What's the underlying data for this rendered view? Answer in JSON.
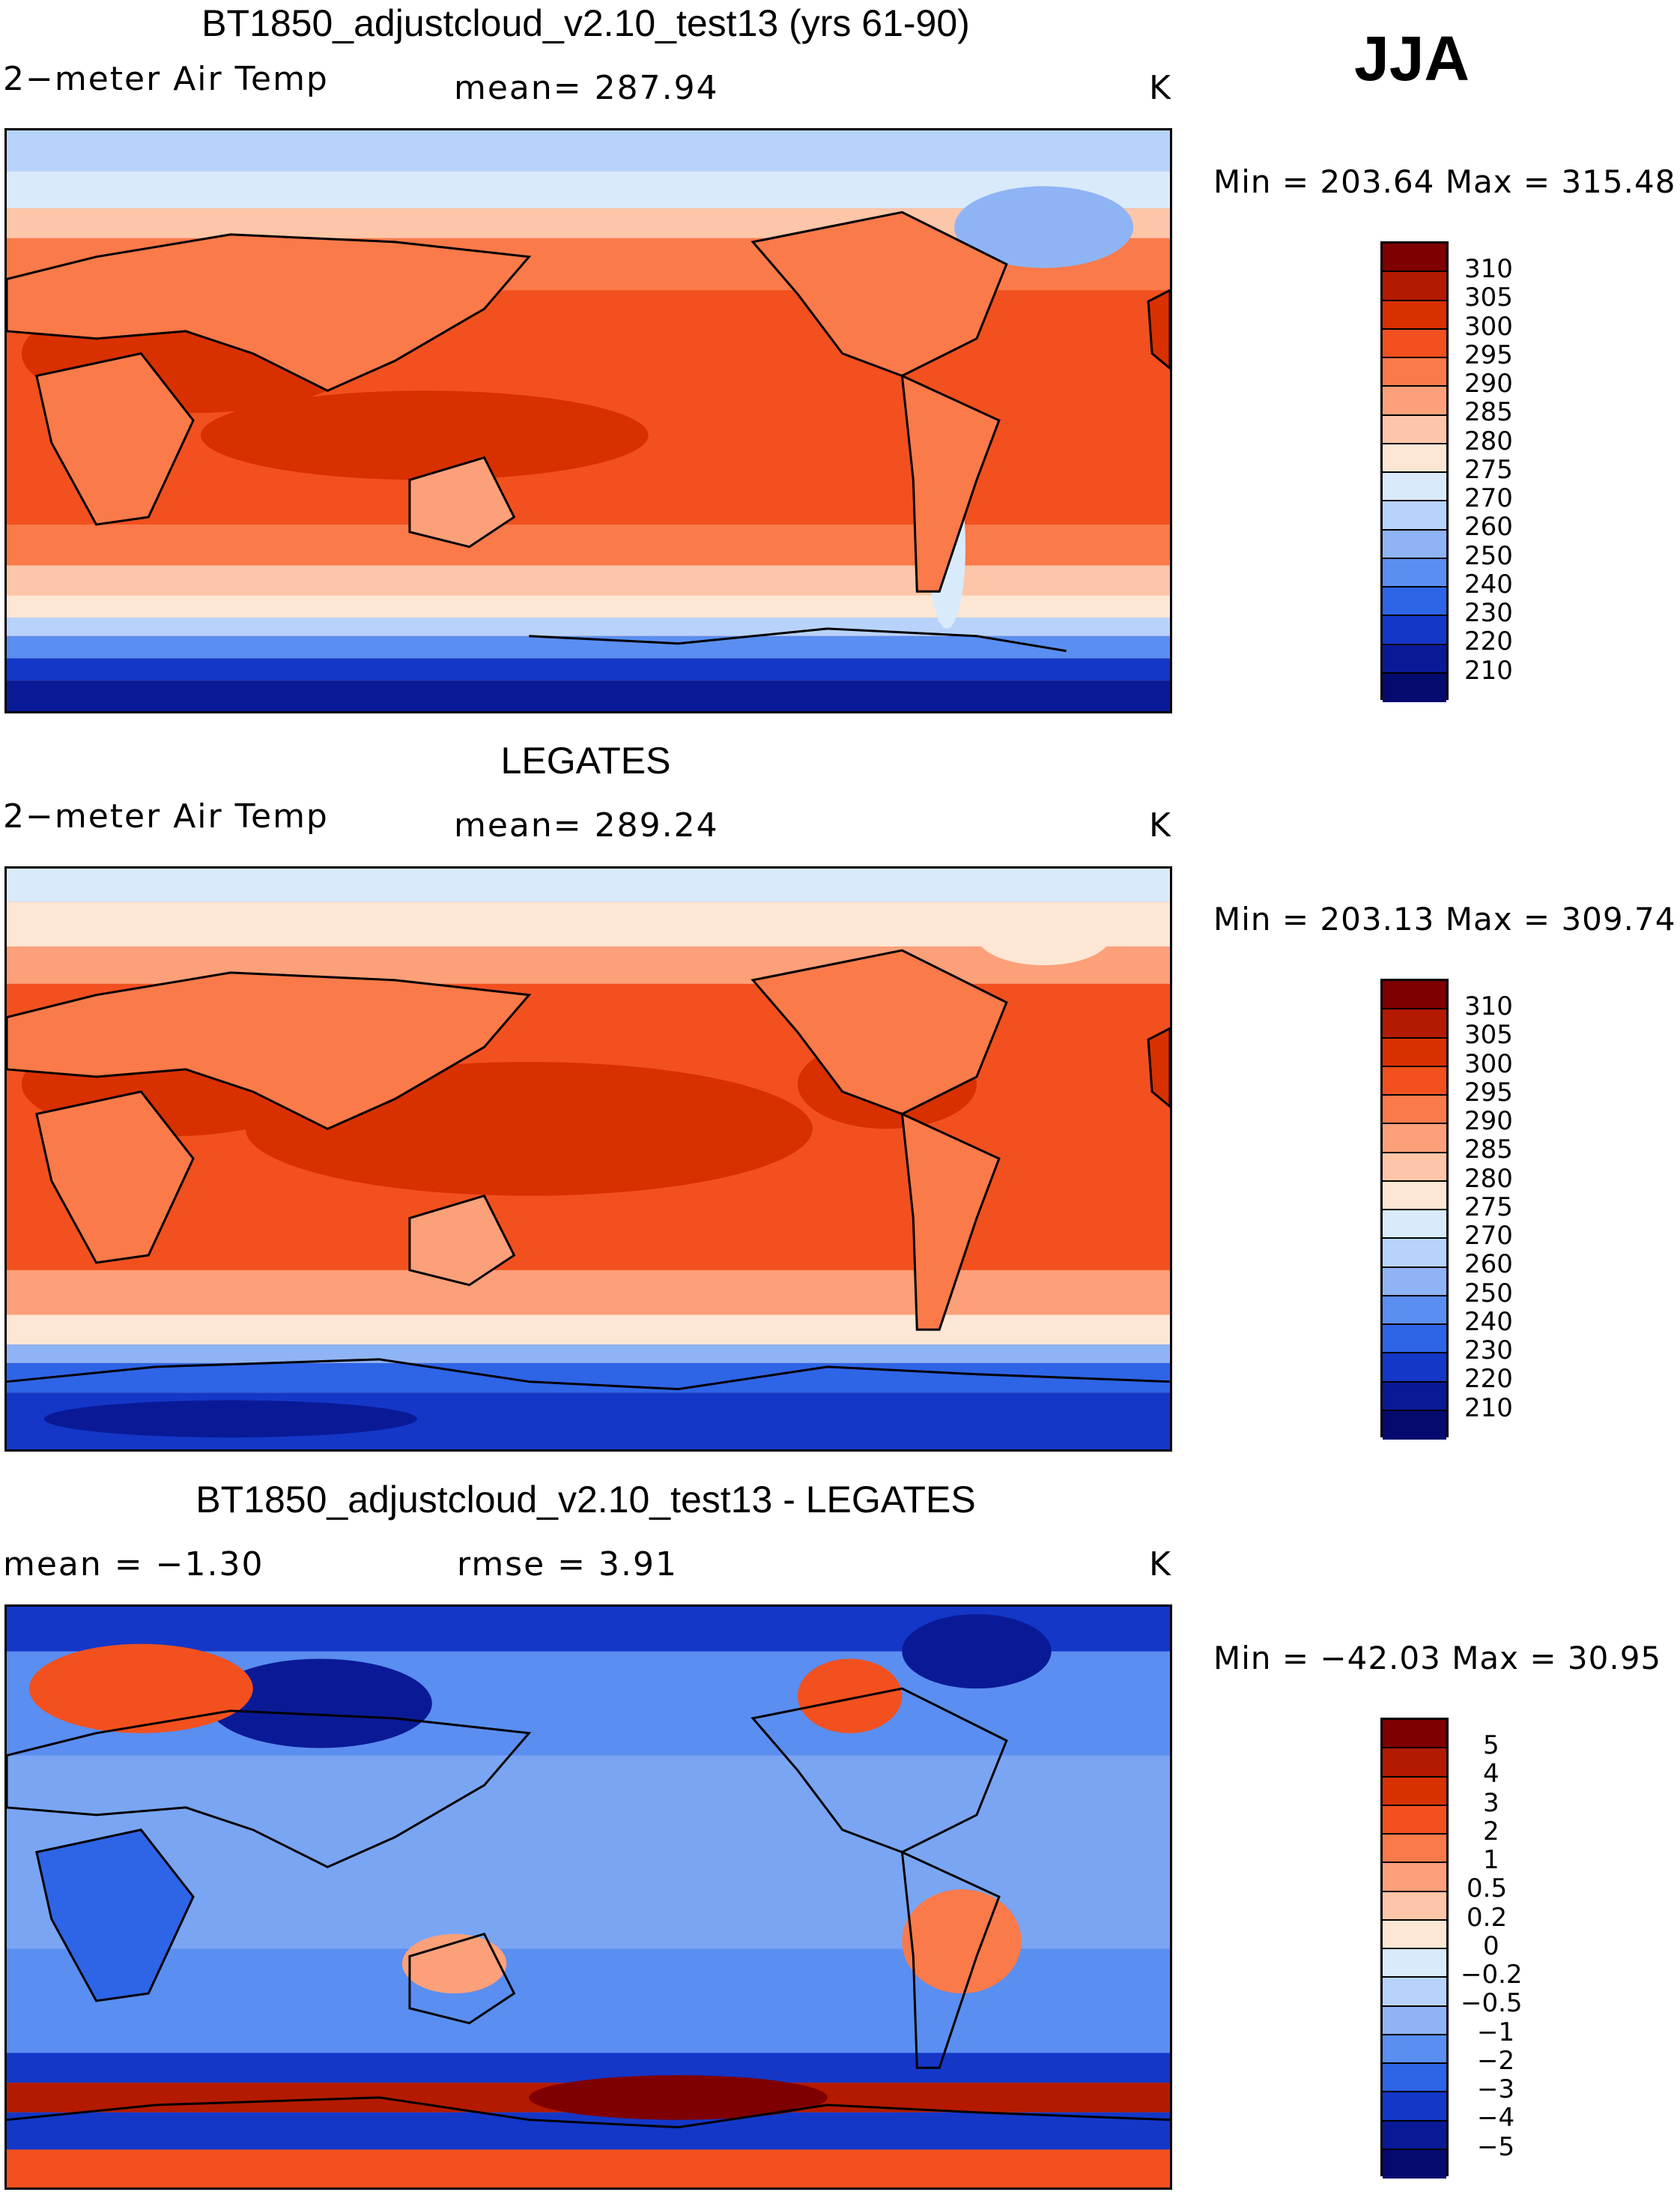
{
  "season": "JJA",
  "panels": [
    {
      "title": "BT1850_adjustcloud_v2.10_test13 (yrs 61-90)",
      "left_label": "2−meter Air Temp",
      "center_label": "mean= 287.94",
      "units": "K",
      "min_max": "Min = 203.64 Max = 315.48",
      "colorbar": {
        "labels": [
          "310",
          "305",
          "300",
          "295",
          "290",
          "285",
          "280",
          "275",
          "270",
          "260",
          "250",
          "240",
          "230",
          "220",
          "210"
        ],
        "colors": [
          "#7f0000",
          "#b31a00",
          "#d93000",
          "#f2501f",
          "#fa7a4a",
          "#fca07a",
          "#fdc6a8",
          "#fde7d4",
          "#d9eafa",
          "#b8d3fb",
          "#8fb4f5",
          "#5a8ef0",
          "#2e64e6",
          "#1437c8",
          "#0a1a96",
          "#040a6e"
        ]
      },
      "map": {
        "field": "absolute",
        "mean_K": 287.94,
        "min_K": 203.64,
        "max_K": 315.48
      }
    },
    {
      "title": "LEGATES",
      "left_label": "2−meter Air Temp",
      "center_label": "mean= 289.24",
      "units": "K",
      "min_max": "Min = 203.13 Max = 309.74",
      "colorbar": {
        "labels": [
          "310",
          "305",
          "300",
          "295",
          "290",
          "285",
          "280",
          "275",
          "270",
          "260",
          "250",
          "240",
          "230",
          "220",
          "210"
        ],
        "colors": [
          "#7f0000",
          "#b31a00",
          "#d93000",
          "#f2501f",
          "#fa7a4a",
          "#fca07a",
          "#fdc6a8",
          "#fde7d4",
          "#d9eafa",
          "#b8d3fb",
          "#8fb4f5",
          "#5a8ef0",
          "#2e64e6",
          "#1437c8",
          "#0a1a96",
          "#040a6e"
        ]
      },
      "map": {
        "field": "absolute",
        "mean_K": 289.24,
        "min_K": 203.13,
        "max_K": 309.74
      }
    },
    {
      "title": "BT1850_adjustcloud_v2.10_test13 - LEGATES",
      "left_label": "mean =  −1.30",
      "center_label": "rmse =    3.91",
      "units": "K",
      "min_max": "Min = −42.03 Max =   30.95",
      "colorbar": {
        "labels": [
          "5",
          "4",
          "3",
          "2",
          "1",
          "0.5",
          "0.2",
          "0",
          "−0.2",
          "−0.5",
          "−1",
          "−2",
          "−3",
          "−4",
          "−5"
        ],
        "colors": [
          "#7f0000",
          "#b31a00",
          "#d93000",
          "#f2501f",
          "#fa7a4a",
          "#fca07a",
          "#fdc6a8",
          "#fde7d4",
          "#d9eafa",
          "#b8d3fb",
          "#8fb4f5",
          "#5a8ef0",
          "#2e64e6",
          "#1437c8",
          "#0a1a96",
          "#040a6e"
        ]
      },
      "map": {
        "field": "difference",
        "mean_K": -1.3,
        "rmse_K": 3.91,
        "min_K": -42.03,
        "max_K": 30.95
      }
    }
  ]
}
